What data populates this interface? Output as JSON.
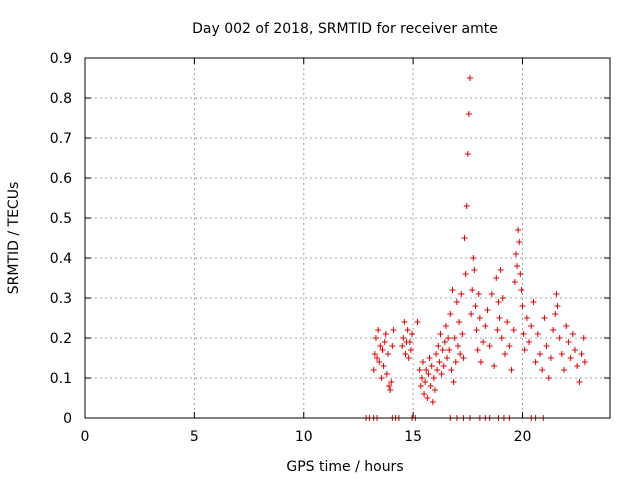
{
  "chart_data": {
    "type": "scatter",
    "title": "Day 002 of 2018, SRMTID for receiver amte",
    "xlabel": "GPS time / hours",
    "ylabel": "SRMTID / TECUs",
    "xlim": [
      0,
      24
    ],
    "ylim": [
      0,
      0.9
    ],
    "grid": true,
    "xticks": [
      0,
      5,
      10,
      15,
      20
    ],
    "xtick_labels": [
      "0",
      "5",
      "10",
      "15",
      "20"
    ],
    "yticks": [
      0,
      0.1,
      0.2,
      0.3,
      0.4,
      0.5,
      0.6,
      0.7,
      0.8,
      0.9
    ],
    "ytick_labels": [
      "0",
      "0.1",
      "0.2",
      "0.3",
      "0.4",
      "0.5",
      "0.6",
      "0.7",
      "0.8",
      "0.9"
    ],
    "marker": "+",
    "color": "#dd0000",
    "series": [
      {
        "name": "SRMTID",
        "points": [
          [
            12.85,
            0
          ],
          [
            13.0,
            0
          ],
          [
            13.2,
            0
          ],
          [
            13.35,
            0
          ],
          [
            14.05,
            0
          ],
          [
            14.2,
            0
          ],
          [
            14.35,
            0
          ],
          [
            14.95,
            0
          ],
          [
            15.1,
            0
          ],
          [
            16.7,
            0
          ],
          [
            17.0,
            0
          ],
          [
            17.3,
            0
          ],
          [
            17.6,
            0
          ],
          [
            18.05,
            0
          ],
          [
            18.3,
            0
          ],
          [
            18.5,
            0
          ],
          [
            18.9,
            0
          ],
          [
            19.15,
            0
          ],
          [
            19.4,
            0
          ],
          [
            20.4,
            0
          ],
          [
            20.6,
            0
          ],
          [
            20.95,
            0
          ],
          [
            13.2,
            0.12
          ],
          [
            13.25,
            0.16
          ],
          [
            13.3,
            0.2
          ],
          [
            13.35,
            0.15
          ],
          [
            13.4,
            0.22
          ],
          [
            13.45,
            0.14
          ],
          [
            13.5,
            0.18
          ],
          [
            13.55,
            0.1
          ],
          [
            13.6,
            0.17
          ],
          [
            13.65,
            0.13
          ],
          [
            13.7,
            0.19
          ],
          [
            13.75,
            0.21
          ],
          [
            13.8,
            0.11
          ],
          [
            13.85,
            0.16
          ],
          [
            13.9,
            0.08
          ],
          [
            13.95,
            0.07
          ],
          [
            14.0,
            0.09
          ],
          [
            14.05,
            0.18
          ],
          [
            14.1,
            0.22
          ],
          [
            14.5,
            0.18
          ],
          [
            14.55,
            0.2
          ],
          [
            14.6,
            0.24
          ],
          [
            14.65,
            0.16
          ],
          [
            14.7,
            0.19
          ],
          [
            14.75,
            0.22
          ],
          [
            14.8,
            0.15
          ],
          [
            14.85,
            0.19
          ],
          [
            14.9,
            0.17
          ],
          [
            14.95,
            0.21
          ],
          [
            15.2,
            0.24
          ],
          [
            15.3,
            0.12
          ],
          [
            15.35,
            0.08
          ],
          [
            15.4,
            0.1
          ],
          [
            15.45,
            0.14
          ],
          [
            15.5,
            0.06
          ],
          [
            15.55,
            0.09
          ],
          [
            15.6,
            0.12
          ],
          [
            15.65,
            0.05
          ],
          [
            15.7,
            0.11
          ],
          [
            15.75,
            0.15
          ],
          [
            15.8,
            0.08
          ],
          [
            15.85,
            0.13
          ],
          [
            15.9,
            0.04
          ],
          [
            15.95,
            0.1
          ],
          [
            16.0,
            0.07
          ],
          [
            16.05,
            0.16
          ],
          [
            16.1,
            0.12
          ],
          [
            16.15,
            0.18
          ],
          [
            16.2,
            0.14
          ],
          [
            16.25,
            0.21
          ],
          [
            16.3,
            0.11
          ],
          [
            16.35,
            0.17
          ],
          [
            16.4,
            0.13
          ],
          [
            16.45,
            0.19
          ],
          [
            16.5,
            0.23
          ],
          [
            16.55,
            0.15
          ],
          [
            16.6,
            0.2
          ],
          [
            16.65,
            0.17
          ],
          [
            16.7,
            0.26
          ],
          [
            16.75,
            0.12
          ],
          [
            16.8,
            0.32
          ],
          [
            16.85,
            0.09
          ],
          [
            16.9,
            0.2
          ],
          [
            16.95,
            0.14
          ],
          [
            17.0,
            0.29
          ],
          [
            17.05,
            0.18
          ],
          [
            17.1,
            0.24
          ],
          [
            17.15,
            0.16
          ],
          [
            17.2,
            0.31
          ],
          [
            17.25,
            0.21
          ],
          [
            17.3,
            0.15
          ],
          [
            17.35,
            0.45
          ],
          [
            17.4,
            0.36
          ],
          [
            17.45,
            0.53
          ],
          [
            17.5,
            0.66
          ],
          [
            17.55,
            0.76
          ],
          [
            17.6,
            0.85
          ],
          [
            17.65,
            0.26
          ],
          [
            17.7,
            0.32
          ],
          [
            17.75,
            0.4
          ],
          [
            17.8,
            0.37
          ],
          [
            17.85,
            0.28
          ],
          [
            17.9,
            0.22
          ],
          [
            17.95,
            0.17
          ],
          [
            18.0,
            0.31
          ],
          [
            18.05,
            0.25
          ],
          [
            18.1,
            0.14
          ],
          [
            18.2,
            0.19
          ],
          [
            18.3,
            0.23
          ],
          [
            18.4,
            0.27
          ],
          [
            18.5,
            0.18
          ],
          [
            18.6,
            0.31
          ],
          [
            18.7,
            0.13
          ],
          [
            18.8,
            0.35
          ],
          [
            18.85,
            0.22
          ],
          [
            18.9,
            0.29
          ],
          [
            18.95,
            0.25
          ],
          [
            19.0,
            0.37
          ],
          [
            19.05,
            0.2
          ],
          [
            19.1,
            0.3
          ],
          [
            19.2,
            0.16
          ],
          [
            19.3,
            0.24
          ],
          [
            19.4,
            0.18
          ],
          [
            19.5,
            0.12
          ],
          [
            19.6,
            0.22
          ],
          [
            19.65,
            0.34
          ],
          [
            19.7,
            0.41
          ],
          [
            19.75,
            0.38
          ],
          [
            19.8,
            0.47
          ],
          [
            19.85,
            0.44
          ],
          [
            19.9,
            0.36
          ],
          [
            19.95,
            0.32
          ],
          [
            20.0,
            0.28
          ],
          [
            20.05,
            0.21
          ],
          [
            20.1,
            0.17
          ],
          [
            20.2,
            0.25
          ],
          [
            20.3,
            0.19
          ],
          [
            20.4,
            0.23
          ],
          [
            20.5,
            0.29
          ],
          [
            20.6,
            0.14
          ],
          [
            20.7,
            0.21
          ],
          [
            20.8,
            0.16
          ],
          [
            20.9,
            0.12
          ],
          [
            21.0,
            0.25
          ],
          [
            21.1,
            0.18
          ],
          [
            21.2,
            0.1
          ],
          [
            21.3,
            0.15
          ],
          [
            21.4,
            0.22
          ],
          [
            21.5,
            0.26
          ],
          [
            21.55,
            0.31
          ],
          [
            21.6,
            0.28
          ],
          [
            21.7,
            0.2
          ],
          [
            21.8,
            0.16
          ],
          [
            21.9,
            0.12
          ],
          [
            22.0,
            0.23
          ],
          [
            22.1,
            0.19
          ],
          [
            22.2,
            0.15
          ],
          [
            22.3,
            0.21
          ],
          [
            22.4,
            0.17
          ],
          [
            22.5,
            0.13
          ],
          [
            22.6,
            0.09
          ],
          [
            22.7,
            0.16
          ],
          [
            22.8,
            0.2
          ],
          [
            22.85,
            0.14
          ]
        ]
      }
    ]
  }
}
